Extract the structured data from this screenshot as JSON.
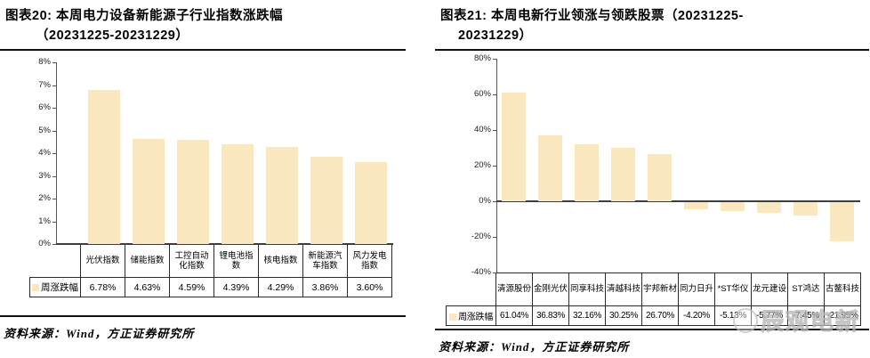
{
  "watermark": {
    "text": "辰观电新",
    "logo": "circle-mascot-logo"
  },
  "colors": {
    "bar_fill": "#FBE7BD",
    "axis_line": "#555555",
    "zero_line": "#3d3d3d",
    "table_border": "#2b2b2b",
    "rule": "#111111"
  },
  "chart_data": [
    {
      "type": "bar",
      "title_line1": "图表20: 本周电力设备新能源子行业指数涨跌幅",
      "title_line2": "（20231225-20231229）",
      "title": "图表20: 本周电力设备新能源子行业指数涨跌幅（20231225-20231229）",
      "categories": [
        "光伏指数",
        "储能指数",
        "工控自动化指数",
        "锂电池指数",
        "核电指数",
        "新能源汽车指数",
        "风力发电指数"
      ],
      "series": [
        {
          "name": "周涨跌幅",
          "values": [
            6.78,
            4.63,
            4.59,
            4.39,
            4.29,
            3.86,
            3.6
          ]
        }
      ],
      "value_labels": [
        "6.78%",
        "4.63%",
        "4.59%",
        "4.39%",
        "4.29%",
        "3.86%",
        "3.60%"
      ],
      "ylabel": "",
      "xlabel": "",
      "ylim": [
        0,
        8
      ],
      "ytick_step": 1,
      "ytick_suffix": "%",
      "grid": false,
      "legend_position": "table-row-label",
      "source": "资料来源：Wind，方正证券研究所"
    },
    {
      "type": "bar",
      "title_line1": "图表21: 本周电新行业领涨与领跌股票（20231225-",
      "title_line2": "20231229）",
      "title": "图表21: 本周电新行业领涨与领跌股票（20231225-20231229）",
      "categories": [
        "清源股份",
        "金刚光伏",
        "同享科技",
        "清越科技",
        "宇邦新材",
        "同力日升",
        "*ST华仪",
        "龙元建设",
        "ST鸿达",
        "古鳌科技"
      ],
      "series": [
        {
          "name": "周涨跌幅",
          "values": [
            61.04,
            36.83,
            32.16,
            30.25,
            26.7,
            -4.2,
            -5.13,
            -5.77,
            -7.45,
            -21.95
          ]
        }
      ],
      "value_labels": [
        "61.04%",
        "36.83%",
        "32.16%",
        "30.25%",
        "26.70%",
        "-4.20%",
        "-5.13%",
        "-5.77%",
        "-7.45%",
        "-21.95%"
      ],
      "ylabel": "",
      "xlabel": "",
      "ylim": [
        -40,
        80
      ],
      "ytick_step": 20,
      "ytick_suffix": "%",
      "grid": false,
      "legend_position": "table-row-label",
      "source": "资料来源：Wind，方正证券研究所"
    }
  ]
}
